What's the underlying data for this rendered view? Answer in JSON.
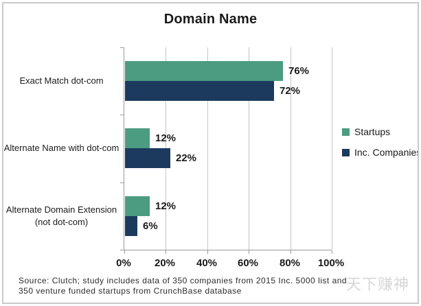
{
  "title": "Domain Name",
  "chart_data": {
    "type": "bar",
    "orientation": "horizontal",
    "title": "Domain Name",
    "categories": [
      "Exact Match dot-com",
      "Alternate Name with dot-com",
      "Alternate Domain Extension (not dot-com)"
    ],
    "series": [
      {
        "name": "Startups",
        "color": "#4B9C81",
        "values": [
          76,
          12,
          12
        ]
      },
      {
        "name": "Inc. Companies",
        "color": "#1C3A5E",
        "values": [
          72,
          22,
          6
        ]
      }
    ],
    "value_labels": [
      [
        "76%",
        "12%",
        "12%"
      ],
      [
        "72%",
        "22%",
        "6%"
      ]
    ],
    "xtick_labels": [
      "0%",
      "20%",
      "40%",
      "60%",
      "80%",
      "100%"
    ],
    "xlim": [
      0,
      100
    ],
    "grid": true,
    "legend_position": "right",
    "bar_value_suffix": "%"
  },
  "source": {
    "line1": "Source: Clutch; study includes data of 350 companies from 2015 Inc. 5000 list and",
    "line2": "350 venture funded startups from CrunchBase database"
  },
  "watermark": "天下赚神"
}
